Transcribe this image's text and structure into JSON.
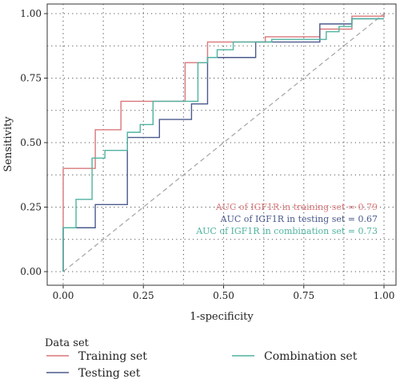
{
  "chart_data": {
    "type": "line",
    "xlabel": "1-specificity",
    "ylabel": "Sensitivity",
    "xlim": [
      0,
      1
    ],
    "ylim": [
      0,
      1
    ],
    "xticks": [
      "0.00",
      "0.25",
      "0.50",
      "0.75",
      "1.00"
    ],
    "yticks": [
      "0.00",
      "0.25",
      "0.50",
      "0.75",
      "1.00"
    ],
    "grid": "dotted",
    "reference_line": {
      "x": [
        0,
        1
      ],
      "y": [
        0,
        1
      ],
      "color": "#aaaaaa"
    },
    "series": [
      {
        "name": "Training set",
        "color": "#d9777a",
        "x": [
          0,
          0,
          0.1,
          0.1,
          0.18,
          0.18,
          0.38,
          0.38,
          0.45,
          0.45,
          0.5,
          0.5,
          0.63,
          0.63,
          0.8,
          0.8,
          0.9,
          0.9,
          1.0,
          1.0
        ],
        "y": [
          0,
          0.4,
          0.4,
          0.55,
          0.55,
          0.66,
          0.66,
          0.81,
          0.81,
          0.89,
          0.89,
          0.89,
          0.89,
          0.91,
          0.91,
          0.94,
          0.94,
          0.99,
          0.99,
          1.0
        ]
      },
      {
        "name": "Testing set",
        "color": "#4a5a8c",
        "x": [
          0,
          0,
          0.1,
          0.1,
          0.2,
          0.2,
          0.3,
          0.3,
          0.4,
          0.4,
          0.45,
          0.45,
          0.6,
          0.6,
          0.8,
          0.8,
          0.9,
          0.9,
          1.0
        ],
        "y": [
          0,
          0.17,
          0.17,
          0.26,
          0.26,
          0.52,
          0.52,
          0.59,
          0.59,
          0.65,
          0.65,
          0.83,
          0.83,
          0.89,
          0.89,
          0.96,
          0.96,
          0.98,
          0.98
        ]
      },
      {
        "name": "Combination set",
        "color": "#4fb3a0",
        "x": [
          0,
          0,
          0.04,
          0.04,
          0.09,
          0.09,
          0.13,
          0.13,
          0.2,
          0.2,
          0.24,
          0.24,
          0.28,
          0.28,
          0.42,
          0.42,
          0.45,
          0.45,
          0.48,
          0.48,
          0.53,
          0.53,
          0.65,
          0.65,
          0.82,
          0.82,
          0.86,
          0.86,
          0.9,
          0.9,
          1.0
        ],
        "y": [
          0,
          0.17,
          0.17,
          0.28,
          0.28,
          0.44,
          0.44,
          0.47,
          0.47,
          0.54,
          0.54,
          0.57,
          0.57,
          0.66,
          0.66,
          0.81,
          0.81,
          0.83,
          0.83,
          0.86,
          0.86,
          0.89,
          0.89,
          0.9,
          0.9,
          0.93,
          0.93,
          0.95,
          0.95,
          0.98,
          0.98
        ]
      }
    ],
    "annotations": [
      {
        "text": "AUC of IGF1R in training set = 0.79",
        "color": "#d9777a"
      },
      {
        "text": "AUC of IGF1R in testing set = 0.67",
        "color": "#4a5a8c"
      },
      {
        "text": "AUC of IGF1R in combination set = 0.73",
        "color": "#4fb3a0"
      }
    ],
    "legend": {
      "title": "Data set",
      "position": "bottom",
      "entries": [
        "Training set",
        "Testing set",
        "Combination set"
      ]
    }
  }
}
